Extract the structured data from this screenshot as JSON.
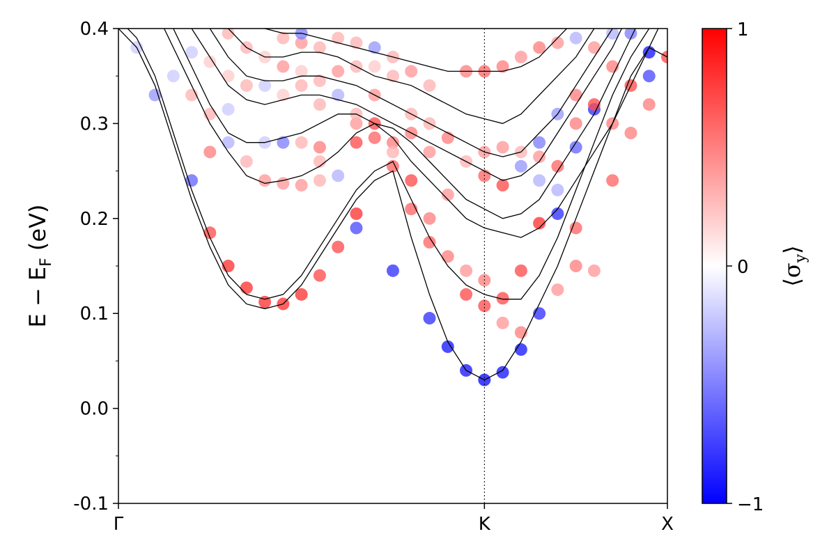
{
  "chart_data": {
    "type": "scatter",
    "title": "",
    "ylabel": "E − E_F (eV)",
    "ylabel_main": "E − E",
    "ylabel_sub": "F",
    "ylabel_unit": " (eV)",
    "ylim": [
      -0.1,
      0.4
    ],
    "y_ticks": [
      -0.1,
      0.0,
      0.1,
      0.2,
      0.3,
      0.4
    ],
    "y_tick_labels": [
      "-0.1",
      "0.0",
      "0.1",
      "0.2",
      "0.3",
      "0.4"
    ],
    "x_ticks": [
      0.0,
      1.0,
      1.5
    ],
    "x_tick_labels": [
      "Γ",
      "K",
      "X"
    ],
    "k_vertical_line_at": 1.0,
    "colorbar": {
      "label": "⟨σ_y⟩",
      "label_open": "⟨σ",
      "label_sub": "y",
      "label_close": "⟩",
      "min": -1,
      "max": 1,
      "tick_values": [
        1,
        0,
        -1
      ],
      "tick_labels": [
        "1",
        "0",
        "−1"
      ],
      "colormap": "bwr",
      "min_color": "#0000ff",
      "mid_color": "#ffffff",
      "max_color": "#ff0000"
    },
    "bands": [
      {
        "x": [
          0.0,
          0.05,
          0.1,
          0.15,
          0.2,
          0.25,
          0.3,
          0.35,
          0.4,
          0.45,
          0.5,
          0.55,
          0.6,
          0.65,
          0.7,
          0.75,
          0.8,
          0.85,
          0.9,
          0.95,
          1.0,
          1.05,
          1.1,
          1.15,
          1.2,
          1.25,
          1.3,
          1.35,
          1.4,
          1.45,
          1.5
        ],
        "y": [
          0.4,
          0.38,
          0.34,
          0.28,
          0.22,
          0.17,
          0.13,
          0.11,
          0.105,
          0.11,
          0.13,
          0.16,
          0.19,
          0.22,
          0.24,
          0.25,
          0.18,
          0.12,
          0.07,
          0.04,
          0.03,
          0.04,
          0.07,
          0.11,
          0.15,
          0.2,
          0.25,
          0.3,
          0.35,
          0.38,
          0.37
        ]
      },
      {
        "x": [
          0.0,
          0.05,
          0.1,
          0.15,
          0.2,
          0.25,
          0.3,
          0.35,
          0.4,
          0.45,
          0.5,
          0.55,
          0.6,
          0.65,
          0.7,
          0.75,
          0.8,
          0.85,
          0.9,
          0.95,
          1.0,
          1.05,
          1.1,
          1.15,
          1.2,
          1.25,
          1.3,
          1.35,
          1.4,
          1.45,
          1.5
        ],
        "y": [
          0.41,
          0.39,
          0.35,
          0.29,
          0.23,
          0.18,
          0.14,
          0.12,
          0.115,
          0.12,
          0.14,
          0.17,
          0.2,
          0.23,
          0.25,
          0.26,
          0.22,
          0.18,
          0.15,
          0.13,
          0.12,
          0.115,
          0.115,
          0.14,
          0.18,
          0.23,
          0.28,
          0.33,
          0.37,
          0.4,
          0.42
        ]
      },
      {
        "x": [
          0.0,
          0.05,
          0.1,
          0.15,
          0.2,
          0.25,
          0.3,
          0.35,
          0.4,
          0.45,
          0.5,
          0.55,
          0.6,
          0.65,
          0.7,
          0.75,
          0.8,
          0.85,
          0.9,
          0.95,
          1.0,
          1.05,
          1.1,
          1.15,
          1.2,
          1.25,
          1.3,
          1.35,
          1.4,
          1.45,
          1.5
        ],
        "y": [
          0.45,
          0.44,
          0.42,
          0.38,
          0.34,
          0.3,
          0.27,
          0.245,
          0.237,
          0.24,
          0.245,
          0.255,
          0.27,
          0.29,
          0.3,
          0.285,
          0.26,
          0.24,
          0.22,
          0.2,
          0.19,
          0.185,
          0.18,
          0.19,
          0.21,
          0.24,
          0.27,
          0.3,
          0.34,
          0.38,
          0.42
        ]
      },
      {
        "x": [
          0.0,
          0.05,
          0.1,
          0.15,
          0.2,
          0.25,
          0.3,
          0.35,
          0.4,
          0.45,
          0.5,
          0.55,
          0.6,
          0.65,
          0.7,
          0.75,
          0.8,
          0.85,
          0.9,
          0.95,
          1.0,
          1.05,
          1.1,
          1.15,
          1.2,
          1.25,
          1.3,
          1.35,
          1.4,
          1.45,
          1.5
        ],
        "y": [
          0.46,
          0.45,
          0.43,
          0.4,
          0.36,
          0.32,
          0.29,
          0.28,
          0.28,
          0.285,
          0.29,
          0.3,
          0.31,
          0.31,
          0.3,
          0.295,
          0.28,
          0.26,
          0.24,
          0.22,
          0.21,
          0.2,
          0.205,
          0.22,
          0.25,
          0.28,
          0.31,
          0.35,
          0.39,
          0.43,
          0.46
        ]
      },
      {
        "x": [
          0.0,
          0.05,
          0.1,
          0.15,
          0.2,
          0.25,
          0.3,
          0.35,
          0.4,
          0.45,
          0.5,
          0.55,
          0.6,
          0.65,
          0.7,
          0.75,
          0.8,
          0.85,
          0.9,
          0.95,
          1.0,
          1.05,
          1.1,
          1.15,
          1.2,
          1.25,
          1.3,
          1.35,
          1.4,
          1.45,
          1.5
        ],
        "y": [
          0.47,
          0.46,
          0.45,
          0.43,
          0.4,
          0.37,
          0.34,
          0.325,
          0.32,
          0.325,
          0.33,
          0.33,
          0.325,
          0.32,
          0.31,
          0.3,
          0.29,
          0.28,
          0.27,
          0.26,
          0.25,
          0.24,
          0.245,
          0.26,
          0.29,
          0.32,
          0.35,
          0.38,
          0.42,
          0.45,
          0.48
        ]
      },
      {
        "x": [
          0.0,
          0.05,
          0.1,
          0.15,
          0.2,
          0.25,
          0.3,
          0.35,
          0.4,
          0.45,
          0.5,
          0.55,
          0.6,
          0.65,
          0.7,
          0.75,
          0.8,
          0.85,
          0.9,
          0.95,
          1.0,
          1.05,
          1.1,
          1.15,
          1.2,
          1.25,
          1.3,
          1.35,
          1.4,
          1.45,
          1.5
        ],
        "y": [
          0.48,
          0.47,
          0.46,
          0.45,
          0.43,
          0.4,
          0.37,
          0.35,
          0.345,
          0.345,
          0.35,
          0.35,
          0.345,
          0.34,
          0.33,
          0.32,
          0.31,
          0.3,
          0.29,
          0.28,
          0.27,
          0.265,
          0.27,
          0.29,
          0.31,
          0.34,
          0.37,
          0.4,
          0.43,
          0.46,
          0.49
        ]
      },
      {
        "x": [
          0.0,
          0.05,
          0.1,
          0.15,
          0.2,
          0.25,
          0.3,
          0.35,
          0.4,
          0.45,
          0.5,
          0.55,
          0.6,
          0.65,
          0.7,
          0.75,
          0.8,
          0.85,
          0.9,
          0.95,
          1.0,
          1.05,
          1.1,
          1.15,
          1.2,
          1.25,
          1.3,
          1.35,
          1.4,
          1.45,
          1.5
        ],
        "y": [
          0.49,
          0.48,
          0.47,
          0.46,
          0.45,
          0.43,
          0.4,
          0.38,
          0.37,
          0.37,
          0.375,
          0.375,
          0.37,
          0.36,
          0.35,
          0.345,
          0.34,
          0.33,
          0.32,
          0.31,
          0.305,
          0.3,
          0.31,
          0.33,
          0.35,
          0.37,
          0.4,
          0.43,
          0.46,
          0.49,
          0.52
        ]
      },
      {
        "x": [
          0.0,
          0.05,
          0.1,
          0.15,
          0.2,
          0.25,
          0.3,
          0.35,
          0.4,
          0.45,
          0.5,
          0.55,
          0.6,
          0.65,
          0.7,
          0.75,
          0.8,
          0.85,
          0.9,
          0.95,
          1.0,
          1.05,
          1.1,
          1.15,
          1.2,
          1.25,
          1.3,
          1.35,
          1.4,
          1.45,
          1.5
        ],
        "y": [
          0.5,
          0.49,
          0.48,
          0.47,
          0.46,
          0.45,
          0.43,
          0.41,
          0.4,
          0.395,
          0.395,
          0.39,
          0.385,
          0.38,
          0.375,
          0.37,
          0.365,
          0.36,
          0.355,
          0.355,
          0.355,
          0.355,
          0.36,
          0.37,
          0.39,
          0.41,
          0.43,
          0.46,
          0.49,
          0.52,
          0.55
        ]
      }
    ],
    "markers": [
      {
        "x": 0.1,
        "y": 0.33,
        "c": -0.4
      },
      {
        "x": 0.2,
        "y": 0.24,
        "c": -0.6
      },
      {
        "x": 0.25,
        "y": 0.185,
        "c": 0.7
      },
      {
        "x": 0.3,
        "y": 0.15,
        "c": 0.8
      },
      {
        "x": 0.35,
        "y": 0.127,
        "c": 0.8
      },
      {
        "x": 0.5,
        "y": 0.12,
        "c": 0.8
      },
      {
        "x": 0.55,
        "y": 0.14,
        "c": 0.7
      },
      {
        "x": 0.6,
        "y": 0.17,
        "c": 0.7
      },
      {
        "x": 0.4,
        "y": 0.112,
        "c": 0.8
      },
      {
        "x": 0.45,
        "y": 0.11,
        "c": 0.8
      },
      {
        "x": 0.75,
        "y": 0.145,
        "c": -0.8
      },
      {
        "x": 0.85,
        "y": 0.095,
        "c": -0.8
      },
      {
        "x": 0.9,
        "y": 0.065,
        "c": -0.9
      },
      {
        "x": 0.95,
        "y": 0.04,
        "c": -0.9
      },
      {
        "x": 1.0,
        "y": 0.03,
        "c": -0.95
      },
      {
        "x": 1.05,
        "y": 0.038,
        "c": -0.9
      },
      {
        "x": 1.1,
        "y": 0.062,
        "c": -0.9
      },
      {
        "x": 1.15,
        "y": 0.1,
        "c": -0.8
      },
      {
        "x": 1.2,
        "y": 0.205,
        "c": -0.8
      },
      {
        "x": 1.3,
        "y": 0.315,
        "c": -0.8
      },
      {
        "x": 1.45,
        "y": 0.375,
        "c": -0.9
      },
      {
        "x": 0.65,
        "y": 0.205,
        "c": 0.8
      },
      {
        "x": 0.75,
        "y": 0.255,
        "c": 0.6
      },
      {
        "x": 0.8,
        "y": 0.21,
        "c": 0.6
      },
      {
        "x": 0.85,
        "y": 0.175,
        "c": 0.6
      },
      {
        "x": 0.95,
        "y": 0.12,
        "c": 0.7
      },
      {
        "x": 1.0,
        "y": 0.108,
        "c": 0.7
      },
      {
        "x": 1.05,
        "y": 0.116,
        "c": 0.7
      },
      {
        "x": 1.1,
        "y": 0.145,
        "c": 0.7
      },
      {
        "x": 1.15,
        "y": 0.195,
        "c": 0.8
      },
      {
        "x": 1.25,
        "y": 0.19,
        "c": 0.6
      },
      {
        "x": 1.35,
        "y": 0.24,
        "c": 0.6
      },
      {
        "x": 1.4,
        "y": 0.34,
        "c": 0.7
      },
      {
        "x": 0.5,
        "y": 0.235,
        "c": 0.4
      },
      {
        "x": 0.55,
        "y": 0.24,
        "c": 0.3
      },
      {
        "x": 0.6,
        "y": 0.245,
        "c": -0.3
      },
      {
        "x": 0.65,
        "y": 0.19,
        "c": -0.7
      },
      {
        "x": 0.8,
        "y": 0.24,
        "c": 0.7
      },
      {
        "x": 0.85,
        "y": 0.2,
        "c": 0.5
      },
      {
        "x": 0.9,
        "y": 0.16,
        "c": 0.5
      },
      {
        "x": 0.95,
        "y": 0.145,
        "c": 0.4
      },
      {
        "x": 1.0,
        "y": 0.135,
        "c": 0.5
      },
      {
        "x": 1.05,
        "y": 0.09,
        "c": 0.4
      },
      {
        "x": 1.1,
        "y": 0.08,
        "c": 0.5
      },
      {
        "x": 1.2,
        "y": 0.125,
        "c": 0.4
      },
      {
        "x": 1.25,
        "y": 0.15,
        "c": 0.5
      },
      {
        "x": 1.3,
        "y": 0.145,
        "c": 0.4
      },
      {
        "x": 0.25,
        "y": 0.27,
        "c": 0.5
      },
      {
        "x": 0.3,
        "y": 0.28,
        "c": -0.3
      },
      {
        "x": 0.35,
        "y": 0.26,
        "c": 0.3
      },
      {
        "x": 0.4,
        "y": 0.24,
        "c": 0.4
      },
      {
        "x": 0.45,
        "y": 0.237,
        "c": 0.4
      },
      {
        "x": 0.55,
        "y": 0.26,
        "c": 0.3
      },
      {
        "x": 0.65,
        "y": 0.28,
        "c": 0.7
      },
      {
        "x": 0.7,
        "y": 0.3,
        "c": 0.7
      },
      {
        "x": 0.75,
        "y": 0.28,
        "c": 0.5
      },
      {
        "x": 0.9,
        "y": 0.225,
        "c": 0.4
      },
      {
        "x": 1.0,
        "y": 0.245,
        "c": 0.6
      },
      {
        "x": 1.05,
        "y": 0.235,
        "c": 0.7
      },
      {
        "x": 1.15,
        "y": 0.265,
        "c": 0.4
      },
      {
        "x": 1.2,
        "y": 0.255,
        "c": 0.6
      },
      {
        "x": 1.25,
        "y": 0.3,
        "c": 0.5
      },
      {
        "x": 1.35,
        "y": 0.3,
        "c": 0.5
      },
      {
        "x": 1.4,
        "y": 0.29,
        "c": 0.5
      },
      {
        "x": 1.45,
        "y": 0.35,
        "c": -0.7
      },
      {
        "x": 0.2,
        "y": 0.33,
        "c": 0.3
      },
      {
        "x": 0.25,
        "y": 0.31,
        "c": 0.3
      },
      {
        "x": 0.3,
        "y": 0.315,
        "c": -0.2
      },
      {
        "x": 0.4,
        "y": 0.28,
        "c": -0.2
      },
      {
        "x": 0.45,
        "y": 0.28,
        "c": -0.5
      },
      {
        "x": 0.5,
        "y": 0.28,
        "c": 0.3
      },
      {
        "x": 0.55,
        "y": 0.275,
        "c": 0.5
      },
      {
        "x": 0.65,
        "y": 0.3,
        "c": 0.4
      },
      {
        "x": 0.7,
        "y": 0.285,
        "c": 0.6
      },
      {
        "x": 0.75,
        "y": 0.27,
        "c": 0.3
      },
      {
        "x": 0.8,
        "y": 0.29,
        "c": 0.5
      },
      {
        "x": 0.85,
        "y": 0.27,
        "c": 0.4
      },
      {
        "x": 0.95,
        "y": 0.26,
        "c": 0.3
      },
      {
        "x": 1.0,
        "y": 0.27,
        "c": 0.4
      },
      {
        "x": 1.1,
        "y": 0.255,
        "c": -0.4
      },
      {
        "x": 1.15,
        "y": 0.24,
        "c": -0.3
      },
      {
        "x": 1.2,
        "y": 0.23,
        "c": -0.3
      },
      {
        "x": 1.25,
        "y": 0.275,
        "c": -0.6
      },
      {
        "x": 1.3,
        "y": 0.32,
        "c": 0.7
      },
      {
        "x": 0.3,
        "y": 0.35,
        "c": 0.2
      },
      {
        "x": 0.35,
        "y": 0.34,
        "c": 0.3
      },
      {
        "x": 0.4,
        "y": 0.34,
        "c": -0.2
      },
      {
        "x": 0.45,
        "y": 0.33,
        "c": 0.2
      },
      {
        "x": 0.5,
        "y": 0.34,
        "c": 0.3
      },
      {
        "x": 0.55,
        "y": 0.32,
        "c": 0.3
      },
      {
        "x": 0.6,
        "y": 0.33,
        "c": -0.3
      },
      {
        "x": 0.65,
        "y": 0.31,
        "c": 0.3
      },
      {
        "x": 0.7,
        "y": 0.33,
        "c": 0.4
      },
      {
        "x": 0.8,
        "y": 0.31,
        "c": 0.3
      },
      {
        "x": 0.85,
        "y": 0.3,
        "c": 0.3
      },
      {
        "x": 0.9,
        "y": 0.285,
        "c": 0.5
      },
      {
        "x": 1.05,
        "y": 0.275,
        "c": 0.4
      },
      {
        "x": 1.1,
        "y": 0.27,
        "c": 0.3
      },
      {
        "x": 1.15,
        "y": 0.28,
        "c": -0.5
      },
      {
        "x": 1.2,
        "y": 0.31,
        "c": -0.4
      },
      {
        "x": 1.25,
        "y": 0.33,
        "c": 0.5
      },
      {
        "x": 1.35,
        "y": 0.36,
        "c": 0.5
      },
      {
        "x": 0.4,
        "y": 0.37,
        "c": 0.2
      },
      {
        "x": 0.45,
        "y": 0.36,
        "c": 0.4
      },
      {
        "x": 0.5,
        "y": 0.355,
        "c": 0.2
      },
      {
        "x": 0.55,
        "y": 0.345,
        "c": 0.3
      },
      {
        "x": 0.6,
        "y": 0.355,
        "c": 0.4
      },
      {
        "x": 0.65,
        "y": 0.36,
        "c": 0.3
      },
      {
        "x": 0.7,
        "y": 0.38,
        "c": -0.4
      },
      {
        "x": 0.75,
        "y": 0.35,
        "c": 0.3
      },
      {
        "x": 0.8,
        "y": 0.355,
        "c": 0.4
      },
      {
        "x": 0.85,
        "y": 0.34,
        "c": 0.3
      },
      {
        "x": 0.95,
        "y": 0.355,
        "c": 0.5
      },
      {
        "x": 1.0,
        "y": 0.355,
        "c": 0.6
      },
      {
        "x": 1.05,
        "y": 0.36,
        "c": 0.5
      },
      {
        "x": 1.1,
        "y": 0.37,
        "c": 0.4
      },
      {
        "x": 1.15,
        "y": 0.38,
        "c": 0.5
      },
      {
        "x": 1.2,
        "y": 0.385,
        "c": 0.4
      },
      {
        "x": 1.25,
        "y": 0.39,
        "c": -0.3
      },
      {
        "x": 1.3,
        "y": 0.38,
        "c": 0.4
      },
      {
        "x": 1.4,
        "y": 0.395,
        "c": -0.5
      },
      {
        "x": 1.35,
        "y": 0.395,
        "c": -0.3
      },
      {
        "x": 0.05,
        "y": 0.38,
        "c": -0.2
      },
      {
        "x": 0.15,
        "y": 0.35,
        "c": -0.2
      },
      {
        "x": 0.2,
        "y": 0.375,
        "c": -0.2
      },
      {
        "x": 0.25,
        "y": 0.365,
        "c": 0.2
      },
      {
        "x": 0.3,
        "y": 0.395,
        "c": 0.3
      },
      {
        "x": 0.35,
        "y": 0.38,
        "c": 0.3
      },
      {
        "x": 0.45,
        "y": 0.39,
        "c": 0.3
      },
      {
        "x": 0.5,
        "y": 0.385,
        "c": 0.4
      },
      {
        "x": 0.55,
        "y": 0.38,
        "c": 0.3
      },
      {
        "x": 0.6,
        "y": 0.39,
        "c": 0.3
      },
      {
        "x": 0.65,
        "y": 0.385,
        "c": 0.3
      },
      {
        "x": 0.7,
        "y": 0.36,
        "c": 0.2
      },
      {
        "x": 0.5,
        "y": 0.395,
        "c": -0.5
      },
      {
        "x": 0.75,
        "y": 0.37,
        "c": 0.3
      },
      {
        "x": 1.45,
        "y": 0.32,
        "c": 0.5
      },
      {
        "x": 1.5,
        "y": 0.37,
        "c": 0.7
      }
    ]
  }
}
